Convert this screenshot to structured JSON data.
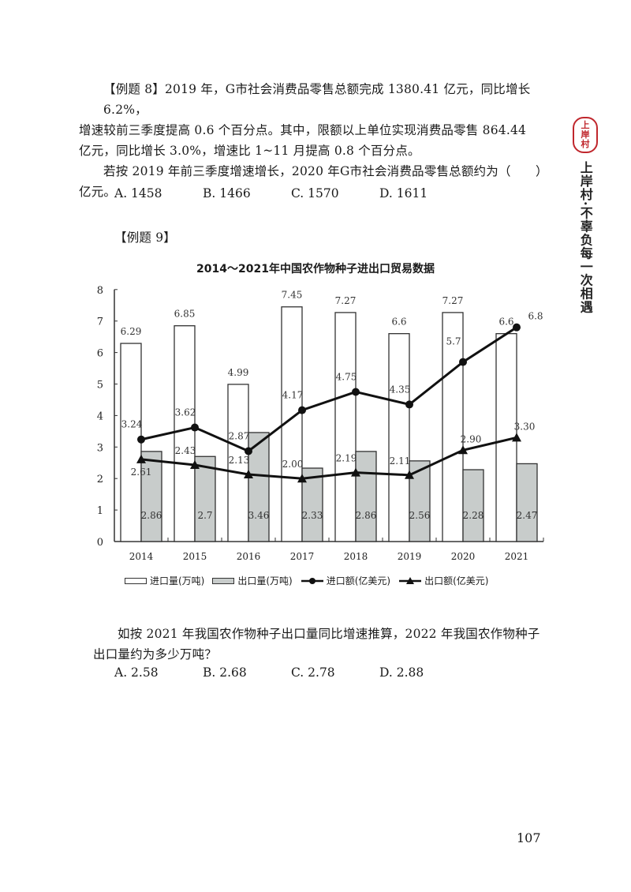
{
  "q8": {
    "label": "【例题 8】",
    "line1": "【例题 8】2019 年，G市社会消费品零售总额完成 1380.41 亿元，同比增长 6.2%，",
    "line2": "增速较前三季度提高 0.6 个百分点。其中，限额以上单位实现消费品零售 864.44",
    "line3": "亿元，同比增长 3.0%，增速比 1~11 月提高 0.8 个百分点。",
    "question_line1": "若按 2019 年前三季度增速增长，2020 年G市社会消费品零售总额约为（　　）",
    "question_line2": "亿元。",
    "options": [
      "A. 1458",
      "B. 1466",
      "C. 1570",
      "D. 1611"
    ]
  },
  "q9": {
    "label": "【例题 9】",
    "question_line1": "如按 2021 年我国农作物种子出口量同比增速推算，2022 年我国农作物种子",
    "question_line2": "出口量约为多少万吨？",
    "options": [
      "A. 2.58",
      "B. 2.68",
      "C. 2.78",
      "D. 2.88"
    ]
  },
  "sidebar": {
    "seal_chars": [
      "上",
      "岸",
      "村"
    ],
    "slogan": "上岸村·不辜负每一次相遇",
    "seal_color": "#c0272d"
  },
  "page_number": "107",
  "chart_data": {
    "type": "bar",
    "title": "2014～2021年中国农作物种子进出口贸易数据",
    "categories": [
      "2014",
      "2015",
      "2016",
      "2017",
      "2018",
      "2019",
      "2020",
      "2021"
    ],
    "xlabel": "",
    "ylabel": "",
    "ylim": [
      0,
      8
    ],
    "yticks": [
      0,
      1,
      2,
      3,
      4,
      5,
      6,
      7,
      8
    ],
    "grid": false,
    "legend_position": "bottom",
    "series": [
      {
        "name": "进口量(万吨)",
        "type": "bar",
        "color": "#ffffff",
        "values": [
          6.29,
          6.85,
          4.99,
          7.45,
          7.27,
          6.6,
          7.27,
          6.6
        ],
        "labels": [
          "6.29",
          "6.85",
          "4.99",
          "7.45",
          "7.27",
          "6.6",
          "7.27",
          "6.6"
        ]
      },
      {
        "name": "出口量(万吨)",
        "type": "bar",
        "color": "#c8cccb",
        "values": [
          2.86,
          2.7,
          3.46,
          2.33,
          2.86,
          2.56,
          2.28,
          2.47
        ],
        "labels": [
          "2.86",
          "2.7",
          "3.46",
          "2.33",
          "2.86",
          "2.56",
          "2.28",
          "2.47"
        ]
      },
      {
        "name": "进口额(亿美元)",
        "type": "line",
        "marker": "circle",
        "color": "#111111",
        "values": [
          3.24,
          3.62,
          2.87,
          4.17,
          4.75,
          4.35,
          5.7,
          6.8
        ],
        "labels": [
          "3.24",
          "3.62",
          "2.87",
          "4.17",
          "4.75",
          "4.35",
          "5.7",
          "6.8"
        ]
      },
      {
        "name": "出口额(亿美元)",
        "type": "line",
        "marker": "triangle",
        "color": "#111111",
        "values": [
          2.61,
          2.43,
          2.13,
          2.0,
          2.19,
          2.11,
          2.9,
          3.3
        ],
        "labels": [
          "2.61",
          "2.43",
          "2.13",
          "2.00",
          "2.19",
          "2.11",
          "2.90",
          "3.30"
        ]
      }
    ]
  }
}
